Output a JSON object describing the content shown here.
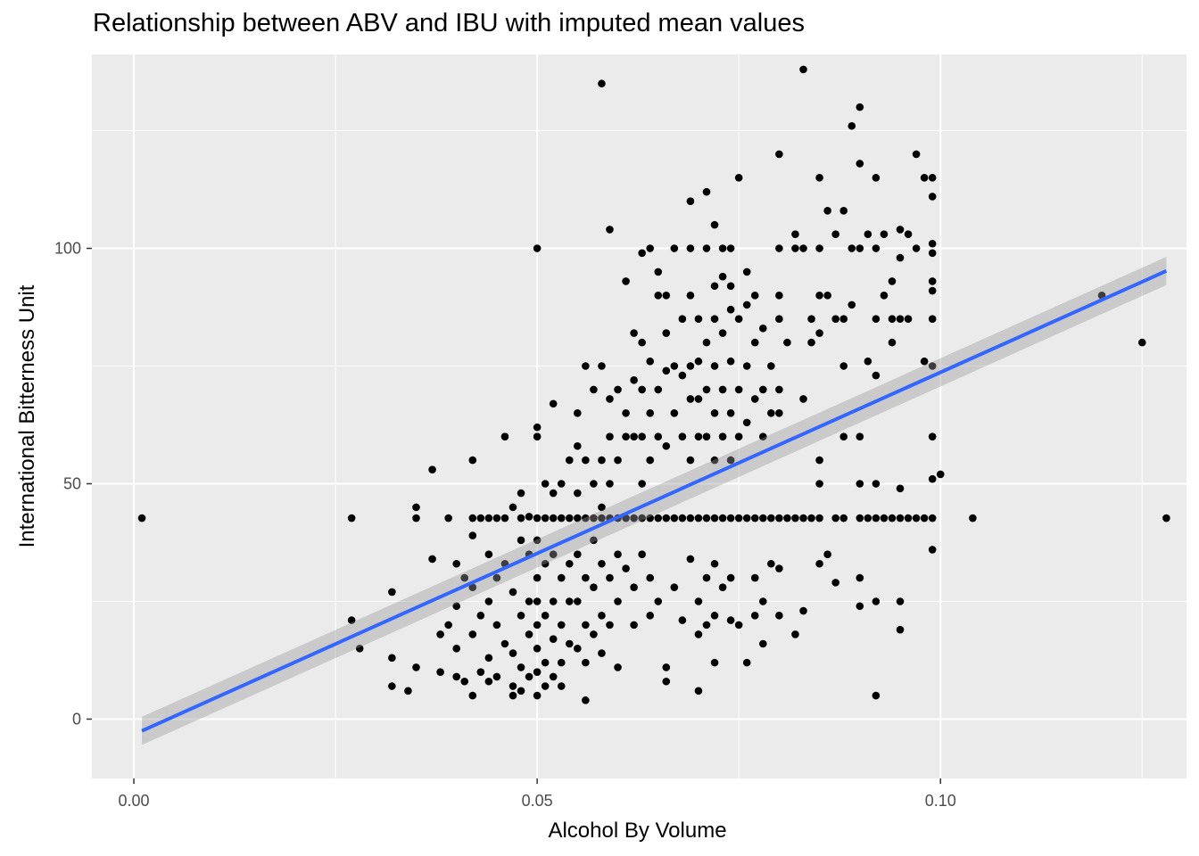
{
  "chart_data": {
    "type": "scatter",
    "title": "Relationship between ABV and IBU with imputed mean values",
    "xlabel": "Alcohol By Volume",
    "ylabel": "International Bitterness Unit",
    "xlim": [
      -0.0052,
      0.1305
    ],
    "ylim": [
      -12.6,
      141.2
    ],
    "x_ticks": [
      0.0,
      0.05,
      0.1
    ],
    "x_tick_labels": [
      "0.00",
      "0.05",
      "0.10"
    ],
    "y_ticks": [
      0,
      50,
      100
    ],
    "y_tick_labels": [
      "0",
      "50",
      "100"
    ],
    "grid": true,
    "legend": "none",
    "colors": {
      "panel": "#ebebeb",
      "grid": "#ffffff",
      "points": "#000000",
      "fit_line": "#3366ff",
      "ci_band": "#999999"
    },
    "fit": {
      "method": "linear",
      "x": [
        0.001,
        0.128
      ],
      "y": [
        -2.5,
        95.2
      ],
      "ci_halfwidth": [
        3.0,
        3.0
      ]
    },
    "imputed_ibu": 42.7,
    "points": [
      [
        0.001,
        42.7
      ],
      [
        0.027,
        42.7
      ],
      [
        0.027,
        21
      ],
      [
        0.028,
        15
      ],
      [
        0.032,
        27
      ],
      [
        0.032,
        13
      ],
      [
        0.032,
        7
      ],
      [
        0.034,
        6
      ],
      [
        0.035,
        45
      ],
      [
        0.035,
        42.7
      ],
      [
        0.035,
        11
      ],
      [
        0.037,
        53
      ],
      [
        0.037,
        34
      ],
      [
        0.038,
        10
      ],
      [
        0.038,
        18
      ],
      [
        0.039,
        42.7
      ],
      [
        0.039,
        20
      ],
      [
        0.04,
        33
      ],
      [
        0.04,
        24
      ],
      [
        0.04,
        15
      ],
      [
        0.04,
        9
      ],
      [
        0.041,
        30
      ],
      [
        0.041,
        8
      ],
      [
        0.042,
        55
      ],
      [
        0.042,
        42.7
      ],
      [
        0.042,
        39
      ],
      [
        0.042,
        28
      ],
      [
        0.042,
        18
      ],
      [
        0.042,
        5
      ],
      [
        0.043,
        42.7
      ],
      [
        0.043,
        22
      ],
      [
        0.043,
        10
      ],
      [
        0.044,
        42.7
      ],
      [
        0.044,
        35
      ],
      [
        0.044,
        25
      ],
      [
        0.044,
        13
      ],
      [
        0.044,
        8
      ],
      [
        0.045,
        42.7
      ],
      [
        0.045,
        30
      ],
      [
        0.045,
        20
      ],
      [
        0.045,
        9
      ],
      [
        0.046,
        60
      ],
      [
        0.046,
        42.7
      ],
      [
        0.046,
        33
      ],
      [
        0.046,
        16
      ],
      [
        0.047,
        45
      ],
      [
        0.047,
        27
      ],
      [
        0.047,
        14
      ],
      [
        0.047,
        7
      ],
      [
        0.047,
        5
      ],
      [
        0.048,
        48
      ],
      [
        0.048,
        42.7
      ],
      [
        0.048,
        38
      ],
      [
        0.048,
        22
      ],
      [
        0.048,
        11
      ],
      [
        0.048,
        6
      ],
      [
        0.049,
        43
      ],
      [
        0.049,
        35
      ],
      [
        0.049,
        25
      ],
      [
        0.049,
        18
      ],
      [
        0.049,
        9
      ],
      [
        0.05,
        100
      ],
      [
        0.05,
        62
      ],
      [
        0.05,
        60
      ],
      [
        0.05,
        42.7
      ],
      [
        0.05,
        38
      ],
      [
        0.05,
        30
      ],
      [
        0.05,
        25
      ],
      [
        0.05,
        20
      ],
      [
        0.05,
        15
      ],
      [
        0.05,
        10
      ],
      [
        0.05,
        5
      ],
      [
        0.051,
        50
      ],
      [
        0.051,
        42.7
      ],
      [
        0.051,
        33
      ],
      [
        0.051,
        22
      ],
      [
        0.051,
        12
      ],
      [
        0.051,
        7
      ],
      [
        0.052,
        67
      ],
      [
        0.052,
        48
      ],
      [
        0.052,
        42.7
      ],
      [
        0.052,
        35
      ],
      [
        0.052,
        25
      ],
      [
        0.052,
        17
      ],
      [
        0.052,
        9
      ],
      [
        0.053,
        50
      ],
      [
        0.053,
        42.7
      ],
      [
        0.053,
        30
      ],
      [
        0.053,
        20
      ],
      [
        0.053,
        12
      ],
      [
        0.053,
        7
      ],
      [
        0.054,
        55
      ],
      [
        0.054,
        42.7
      ],
      [
        0.054,
        33
      ],
      [
        0.054,
        25
      ],
      [
        0.054,
        16
      ],
      [
        0.055,
        65
      ],
      [
        0.055,
        58
      ],
      [
        0.055,
        48
      ],
      [
        0.055,
        42.7
      ],
      [
        0.055,
        35
      ],
      [
        0.055,
        25
      ],
      [
        0.055,
        15
      ],
      [
        0.056,
        75
      ],
      [
        0.056,
        55
      ],
      [
        0.056,
        42.7
      ],
      [
        0.056,
        30
      ],
      [
        0.056,
        20
      ],
      [
        0.056,
        12
      ],
      [
        0.056,
        4
      ],
      [
        0.057,
        70
      ],
      [
        0.057,
        50
      ],
      [
        0.057,
        42.7
      ],
      [
        0.057,
        38
      ],
      [
        0.057,
        28
      ],
      [
        0.057,
        18
      ],
      [
        0.058,
        135
      ],
      [
        0.058,
        75
      ],
      [
        0.058,
        55
      ],
      [
        0.058,
        45
      ],
      [
        0.058,
        42.7
      ],
      [
        0.058,
        33
      ],
      [
        0.058,
        22
      ],
      [
        0.058,
        14
      ],
      [
        0.059,
        104
      ],
      [
        0.059,
        68
      ],
      [
        0.059,
        60
      ],
      [
        0.059,
        50
      ],
      [
        0.059,
        42.7
      ],
      [
        0.059,
        30
      ],
      [
        0.059,
        20
      ],
      [
        0.06,
        70
      ],
      [
        0.06,
        55
      ],
      [
        0.06,
        42.7
      ],
      [
        0.06,
        35
      ],
      [
        0.06,
        25
      ],
      [
        0.06,
        11
      ],
      [
        0.061,
        93
      ],
      [
        0.061,
        65
      ],
      [
        0.061,
        60
      ],
      [
        0.061,
        42.7
      ],
      [
        0.061,
        32
      ],
      [
        0.062,
        82
      ],
      [
        0.062,
        72
      ],
      [
        0.062,
        60
      ],
      [
        0.062,
        42.7
      ],
      [
        0.062,
        28
      ],
      [
        0.062,
        20
      ],
      [
        0.063,
        99
      ],
      [
        0.063,
        80
      ],
      [
        0.063,
        70
      ],
      [
        0.063,
        60
      ],
      [
        0.063,
        50
      ],
      [
        0.063,
        42.7
      ],
      [
        0.063,
        35
      ],
      [
        0.064,
        100
      ],
      [
        0.064,
        76
      ],
      [
        0.064,
        65
      ],
      [
        0.064,
        55
      ],
      [
        0.064,
        42.7
      ],
      [
        0.064,
        30
      ],
      [
        0.064,
        22
      ],
      [
        0.065,
        95
      ],
      [
        0.065,
        90
      ],
      [
        0.065,
        70
      ],
      [
        0.065,
        60
      ],
      [
        0.065,
        42.7
      ],
      [
        0.065,
        25
      ],
      [
        0.066,
        90
      ],
      [
        0.066,
        82
      ],
      [
        0.066,
        74
      ],
      [
        0.066,
        58
      ],
      [
        0.066,
        42.7
      ],
      [
        0.066,
        11
      ],
      [
        0.066,
        8
      ],
      [
        0.067,
        100
      ],
      [
        0.067,
        75
      ],
      [
        0.067,
        65
      ],
      [
        0.067,
        42.7
      ],
      [
        0.067,
        28
      ],
      [
        0.068,
        85
      ],
      [
        0.068,
        73
      ],
      [
        0.068,
        60
      ],
      [
        0.068,
        42.7
      ],
      [
        0.068,
        21
      ],
      [
        0.069,
        110
      ],
      [
        0.069,
        100
      ],
      [
        0.069,
        90
      ],
      [
        0.069,
        75
      ],
      [
        0.069,
        68
      ],
      [
        0.069,
        55
      ],
      [
        0.069,
        42.7
      ],
      [
        0.069,
        34
      ],
      [
        0.07,
        85
      ],
      [
        0.07,
        76
      ],
      [
        0.07,
        68
      ],
      [
        0.07,
        60
      ],
      [
        0.07,
        42.7
      ],
      [
        0.07,
        25
      ],
      [
        0.07,
        18
      ],
      [
        0.07,
        6
      ],
      [
        0.071,
        112
      ],
      [
        0.071,
        100
      ],
      [
        0.071,
        80
      ],
      [
        0.071,
        70
      ],
      [
        0.071,
        60
      ],
      [
        0.071,
        42.7
      ],
      [
        0.071,
        30
      ],
      [
        0.071,
        20
      ],
      [
        0.072,
        105
      ],
      [
        0.072,
        92
      ],
      [
        0.072,
        85
      ],
      [
        0.072,
        75
      ],
      [
        0.072,
        65
      ],
      [
        0.072,
        55
      ],
      [
        0.072,
        42.7
      ],
      [
        0.072,
        33
      ],
      [
        0.072,
        22
      ],
      [
        0.072,
        12
      ],
      [
        0.073,
        100
      ],
      [
        0.073,
        94
      ],
      [
        0.073,
        82
      ],
      [
        0.073,
        70
      ],
      [
        0.073,
        60
      ],
      [
        0.073,
        42.7
      ],
      [
        0.073,
        28
      ],
      [
        0.074,
        100
      ],
      [
        0.074,
        92
      ],
      [
        0.074,
        87
      ],
      [
        0.074,
        76
      ],
      [
        0.074,
        65
      ],
      [
        0.074,
        55
      ],
      [
        0.074,
        42.7
      ],
      [
        0.074,
        30
      ],
      [
        0.074,
        21
      ],
      [
        0.075,
        115
      ],
      [
        0.075,
        85
      ],
      [
        0.075,
        70
      ],
      [
        0.075,
        60
      ],
      [
        0.075,
        42.7
      ],
      [
        0.075,
        20
      ],
      [
        0.076,
        95
      ],
      [
        0.076,
        88
      ],
      [
        0.076,
        75
      ],
      [
        0.076,
        63
      ],
      [
        0.076,
        42.7
      ],
      [
        0.076,
        12
      ],
      [
        0.077,
        90
      ],
      [
        0.077,
        80
      ],
      [
        0.077,
        68
      ],
      [
        0.077,
        42.7
      ],
      [
        0.077,
        30
      ],
      [
        0.077,
        22
      ],
      [
        0.078,
        83
      ],
      [
        0.078,
        70
      ],
      [
        0.078,
        60
      ],
      [
        0.078,
        42.7
      ],
      [
        0.078,
        25
      ],
      [
        0.078,
        16
      ],
      [
        0.079,
        75
      ],
      [
        0.079,
        65
      ],
      [
        0.079,
        42.7
      ],
      [
        0.079,
        33
      ],
      [
        0.08,
        120
      ],
      [
        0.08,
        100
      ],
      [
        0.08,
        90
      ],
      [
        0.08,
        85
      ],
      [
        0.08,
        70
      ],
      [
        0.08,
        65
      ],
      [
        0.08,
        42.7
      ],
      [
        0.08,
        32
      ],
      [
        0.08,
        22
      ],
      [
        0.081,
        80
      ],
      [
        0.081,
        42.7
      ],
      [
        0.082,
        103
      ],
      [
        0.082,
        100
      ],
      [
        0.082,
        42.7
      ],
      [
        0.082,
        18
      ],
      [
        0.083,
        138
      ],
      [
        0.083,
        100
      ],
      [
        0.083,
        68
      ],
      [
        0.083,
        42.7
      ],
      [
        0.083,
        23
      ],
      [
        0.084,
        85
      ],
      [
        0.084,
        80
      ],
      [
        0.084,
        42.7
      ],
      [
        0.085,
        115
      ],
      [
        0.085,
        100
      ],
      [
        0.085,
        90
      ],
      [
        0.085,
        82
      ],
      [
        0.085,
        55
      ],
      [
        0.085,
        50
      ],
      [
        0.085,
        42.7
      ],
      [
        0.085,
        33
      ],
      [
        0.086,
        108
      ],
      [
        0.086,
        90
      ],
      [
        0.086,
        35
      ],
      [
        0.087,
        103
      ],
      [
        0.087,
        85
      ],
      [
        0.087,
        42.7
      ],
      [
        0.087,
        29
      ],
      [
        0.088,
        108
      ],
      [
        0.088,
        85
      ],
      [
        0.088,
        75
      ],
      [
        0.088,
        60
      ],
      [
        0.088,
        42.7
      ],
      [
        0.089,
        126
      ],
      [
        0.089,
        100
      ],
      [
        0.089,
        88
      ],
      [
        0.09,
        130
      ],
      [
        0.09,
        118
      ],
      [
        0.09,
        100
      ],
      [
        0.09,
        60
      ],
      [
        0.09,
        50
      ],
      [
        0.09,
        42.7
      ],
      [
        0.09,
        30
      ],
      [
        0.09,
        24
      ],
      [
        0.091,
        103
      ],
      [
        0.091,
        76
      ],
      [
        0.091,
        42.7
      ],
      [
        0.092,
        115
      ],
      [
        0.092,
        100
      ],
      [
        0.092,
        85
      ],
      [
        0.092,
        73
      ],
      [
        0.092,
        50
      ],
      [
        0.092,
        42.7
      ],
      [
        0.092,
        25
      ],
      [
        0.092,
        5
      ],
      [
        0.093,
        103
      ],
      [
        0.093,
        90
      ],
      [
        0.093,
        42.7
      ],
      [
        0.094,
        93
      ],
      [
        0.094,
        85
      ],
      [
        0.094,
        80
      ],
      [
        0.094,
        42.7
      ],
      [
        0.095,
        104
      ],
      [
        0.095,
        98
      ],
      [
        0.095,
        85
      ],
      [
        0.095,
        49
      ],
      [
        0.095,
        42.7
      ],
      [
        0.095,
        25
      ],
      [
        0.095,
        19
      ],
      [
        0.096,
        103
      ],
      [
        0.096,
        85
      ],
      [
        0.096,
        42.7
      ],
      [
        0.097,
        120
      ],
      [
        0.097,
        100
      ],
      [
        0.097,
        42.7
      ],
      [
        0.098,
        115
      ],
      [
        0.098,
        76
      ],
      [
        0.098,
        42.7
      ],
      [
        0.099,
        115
      ],
      [
        0.099,
        111
      ],
      [
        0.099,
        101
      ],
      [
        0.099,
        99
      ],
      [
        0.099,
        93
      ],
      [
        0.099,
        91
      ],
      [
        0.099,
        85
      ],
      [
        0.099,
        75
      ],
      [
        0.099,
        60
      ],
      [
        0.099,
        51
      ],
      [
        0.099,
        42.7
      ],
      [
        0.099,
        36
      ],
      [
        0.1,
        52
      ],
      [
        0.104,
        42.7
      ],
      [
        0.12,
        90
      ],
      [
        0.125,
        80
      ],
      [
        0.128,
        42.7
      ]
    ]
  }
}
